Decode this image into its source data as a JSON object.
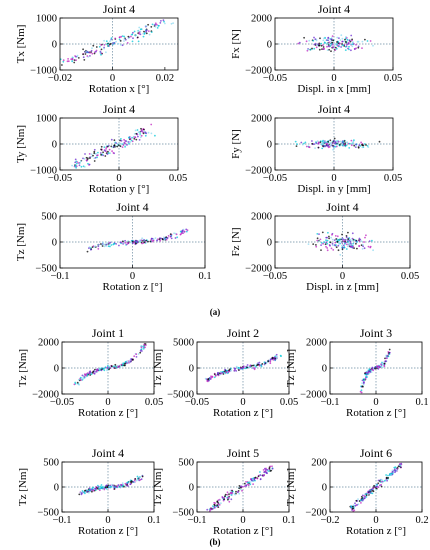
{
  "figure": {
    "label_a": "(a)",
    "label_b": "(b)"
  },
  "colors": {
    "point_colors": [
      "#00c8d8",
      "#8cd8f0",
      "#c020c0",
      "#6a2ad0",
      "#000000"
    ],
    "zero_line": "#6a8aa0"
  },
  "chart_data": [
    {
      "type": "scatter",
      "title": "Joint 4",
      "xlabel": "Rotation x [°]",
      "ylabel": "Tx [Nm]",
      "xlim": [
        -0.02,
        0.025
      ],
      "ylim": [
        -1000,
        1000
      ],
      "xticks": [
        -0.02,
        0,
        0.02
      ],
      "xtick_labels": [
        "−0.02",
        "0",
        "0.02"
      ],
      "yticks": [
        -1000,
        0,
        1000
      ],
      "ytick_labels": [
        "−1000",
        "0",
        "1000"
      ],
      "trend": "linear",
      "slope": 40000,
      "spread_x": 0.0035,
      "spread_y": 150,
      "x_range": [
        -0.018,
        0.02
      ]
    },
    {
      "type": "scatter",
      "title": "Joint 4",
      "xlabel": "Displ. in x [mm]",
      "ylabel": "Fx [N]",
      "xlim": [
        -0.05,
        0.05
      ],
      "ylim": [
        -2000,
        2000
      ],
      "xticks": [
        -0.05,
        0,
        0.05
      ],
      "xtick_labels": [
        "−0.05",
        "0",
        "0.05"
      ],
      "yticks": [
        -2000,
        0,
        2000
      ],
      "ytick_labels": [
        "−2000",
        "0",
        "2000"
      ],
      "trend": "cloud",
      "spread_x": 0.022,
      "spread_y": 400
    },
    {
      "type": "scatter",
      "title": "Joint 4",
      "xlabel": "Rotation y [°]",
      "ylabel": "Ty [Nm]",
      "xlim": [
        -0.05,
        0.05
      ],
      "ylim": [
        -1000,
        1000
      ],
      "xticks": [
        -0.05,
        0,
        0.05
      ],
      "xtick_labels": [
        "−0.05",
        "0",
        "0.05"
      ],
      "yticks": [
        -1000,
        0,
        1000
      ],
      "ytick_labels": [
        "−1000",
        "0",
        "1000"
      ],
      "trend": "linear",
      "slope": 22000,
      "spread_x": 0.006,
      "spread_y": 160,
      "x_range": [
        -0.04,
        0.025
      ]
    },
    {
      "type": "scatter",
      "title": "Joint 4",
      "xlabel": "Displ. in y [mm]",
      "ylabel": "Fy [N]",
      "xlim": [
        -0.05,
        0.05
      ],
      "ylim": [
        -2000,
        2000
      ],
      "xticks": [
        -0.05,
        0,
        0.05
      ],
      "xtick_labels": [
        "−0.05",
        "0",
        "0.05"
      ],
      "yticks": [
        -2000,
        0,
        2000
      ],
      "ytick_labels": [
        "−2000",
        "0",
        "2000"
      ],
      "trend": "cloud",
      "spread_x": 0.022,
      "spread_y": 250
    },
    {
      "type": "scatter",
      "title": "Joint 4",
      "xlabel": "Rotation z [°]",
      "ylabel": "Tz [Nm]",
      "xlim": [
        -0.1,
        0.1
      ],
      "ylim": [
        -500,
        500
      ],
      "xticks": [
        -0.1,
        0,
        0.1
      ],
      "xtick_labels": [
        "−0.1",
        "0",
        "0.1"
      ],
      "yticks": [
        -500,
        0,
        500
      ],
      "ytick_labels": [
        "−500",
        "0",
        "500"
      ],
      "trend": "cubic",
      "lin": 800,
      "cub": 400000,
      "spread_x": 0.004,
      "spread_y": 40,
      "x_range": [
        -0.06,
        0.075
      ]
    },
    {
      "type": "scatter",
      "title": "Joint 4",
      "xlabel": "Displ. in z [mm]",
      "ylabel": "Fz [N]",
      "xlim": [
        -0.05,
        0.05
      ],
      "ylim": [
        -2000,
        2000
      ],
      "xticks": [
        -0.05,
        0,
        0.05
      ],
      "xtick_labels": [
        "−0.05",
        "0",
        "0.05"
      ],
      "yticks": [
        -2000,
        0,
        2000
      ],
      "ytick_labels": [
        "−2000",
        "0",
        "2000"
      ],
      "trend": "cloud",
      "spread_x": 0.016,
      "spread_y": 450
    },
    {
      "type": "scatter",
      "title": "Joint 1",
      "xlabel": "Rotation z [°]",
      "ylabel": "Tz [Nm]",
      "xlim": [
        -0.05,
        0.05
      ],
      "ylim": [
        -2000,
        2000
      ],
      "xticks": [
        -0.05,
        0,
        0.05
      ],
      "xtick_labels": [
        "−0.05",
        "0",
        "0.05"
      ],
      "yticks": [
        -2000,
        0,
        2000
      ],
      "ytick_labels": [
        "−2000",
        "0",
        "2000"
      ],
      "trend": "cubic",
      "lin": 12000,
      "cub": 20000000,
      "spread_x": 0.003,
      "spread_y": 120,
      "x_range": [
        -0.035,
        0.042
      ]
    },
    {
      "type": "scatter",
      "title": "Joint 2",
      "xlabel": "Rotation z [°]",
      "ylabel": "Tz [Nm]",
      "xlim": [
        -0.05,
        0.05
      ],
      "ylim": [
        -5000,
        5000
      ],
      "xticks": [
        -0.05,
        0,
        0.05
      ],
      "xtick_labels": [
        "−0.05",
        "0",
        "0.05"
      ],
      "yticks": [
        -5000,
        0,
        5000
      ],
      "ytick_labels": [
        "−5000",
        "0",
        "5000"
      ],
      "trend": "cubic",
      "lin": 30000,
      "cub": 20000000,
      "spread_x": 0.003,
      "spread_y": 300,
      "x_range": [
        -0.04,
        0.04
      ]
    },
    {
      "type": "scatter",
      "title": "Joint 3",
      "xlabel": "Rotation z [°]",
      "ylabel": "Tz [Nm]",
      "xlim": [
        -0.1,
        0.1
      ],
      "ylim": [
        -2000,
        2000
      ],
      "xticks": [
        -0.1,
        0,
        0.1
      ],
      "xtick_labels": [
        "−0.1",
        "0",
        "0.1"
      ],
      "yticks": [
        -2000,
        0,
        2000
      ],
      "ytick_labels": [
        "−2000",
        "0",
        "2000"
      ],
      "trend": "cubic",
      "lin": 8000,
      "cub": 40000000,
      "spread_x": 0.004,
      "spread_y": 120,
      "x_range": [
        -0.055,
        0.03
      ]
    },
    {
      "type": "scatter",
      "title": "Joint 4",
      "xlabel": "Rotation z [°]",
      "ylabel": "Tz [Nm]",
      "xlim": [
        -0.1,
        0.1
      ],
      "ylim": [
        -500,
        500
      ],
      "xticks": [
        -0.1,
        0,
        0.1
      ],
      "xtick_labels": [
        "−0.1",
        "0",
        "0.1"
      ],
      "yticks": [
        -500,
        0,
        500
      ],
      "ytick_labels": [
        "−500",
        "0",
        "500"
      ],
      "trend": "cubic",
      "lin": 800,
      "cub": 400000,
      "spread_x": 0.004,
      "spread_y": 40,
      "x_range": [
        -0.06,
        0.075
      ]
    },
    {
      "type": "scatter",
      "title": "Joint 5",
      "xlabel": "Rotation z [°]",
      "ylabel": "Tz [Nm]",
      "xlim": [
        -0.1,
        0.1
      ],
      "ylim": [
        -500,
        500
      ],
      "xticks": [
        -0.1,
        0,
        0.1
      ],
      "xtick_labels": [
        "−0.1",
        "0",
        "0.1"
      ],
      "yticks": [
        -500,
        0,
        500
      ],
      "ytick_labels": [
        "−500",
        "0",
        "500"
      ],
      "trend": "linear",
      "slope": 6000,
      "spread_x": 0.006,
      "spread_y": 60,
      "x_range": [
        -0.075,
        0.065
      ]
    },
    {
      "type": "scatter",
      "title": "Joint 6",
      "xlabel": "Rotation z [°]",
      "ylabel": "Tz [Nm]",
      "xlim": [
        -0.2,
        0.2
      ],
      "ylim": [
        -200,
        200
      ],
      "xticks": [
        -0.2,
        0,
        0.2
      ],
      "xtick_labels": [
        "−0.2",
        "0",
        "0.2"
      ],
      "yticks": [
        -200,
        0,
        200
      ],
      "ytick_labels": [
        "−200",
        "0",
        "200"
      ],
      "trend": "linear",
      "slope": 1600,
      "spread_x": 0.008,
      "spread_y": 20,
      "x_range": [
        -0.11,
        0.11
      ]
    }
  ]
}
